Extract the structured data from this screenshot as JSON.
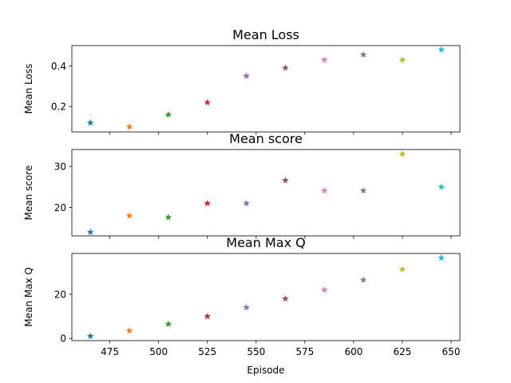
{
  "chart_data": [
    {
      "type": "scatter",
      "title": "Mean Loss",
      "xlabel": "",
      "ylabel": "Mean Loss",
      "xlim": [
        455.5,
        654.5
      ],
      "ylim": [
        0.075,
        0.5
      ],
      "yticks": [
        0.2,
        0.4
      ],
      "ytick_labels": [
        "0.2",
        "0.4"
      ],
      "show_xtick_labels": false,
      "grid": false,
      "marker": "star",
      "x": [
        465,
        485,
        505,
        525,
        545,
        565,
        585,
        605,
        625,
        645
      ],
      "y": [
        0.12,
        0.1,
        0.16,
        0.22,
        0.35,
        0.39,
        0.43,
        0.455,
        0.43,
        0.48
      ]
    },
    {
      "type": "scatter",
      "title": "Mean score",
      "xlabel": "",
      "ylabel": "Mean score",
      "xlim": [
        455.5,
        654.5
      ],
      "ylim": [
        13.1,
        34.1
      ],
      "yticks": [
        20,
        30
      ],
      "ytick_labels": [
        "20",
        "30"
      ],
      "show_xtick_labels": false,
      "grid": false,
      "marker": "star",
      "x": [
        465,
        485,
        505,
        525,
        545,
        565,
        585,
        605,
        625,
        645
      ],
      "y": [
        14,
        18,
        17.6,
        21,
        21,
        26.6,
        24.1,
        24.1,
        33,
        25
      ]
    },
    {
      "type": "scatter",
      "title": "Mean Max Q",
      "xlabel": "Episode",
      "ylabel": "Mean Max Q",
      "xlim": [
        455.5,
        654.5
      ],
      "ylim": [
        -1,
        38.5
      ],
      "yticks": [
        0,
        20
      ],
      "ytick_labels": [
        "0",
        "20"
      ],
      "show_xtick_labels": true,
      "grid": false,
      "marker": "star",
      "x": [
        465,
        485,
        505,
        525,
        545,
        565,
        585,
        605,
        625,
        645
      ],
      "y": [
        1,
        3.5,
        6.5,
        10,
        14,
        18,
        22,
        26.5,
        31.3,
        36.5
      ]
    }
  ],
  "x_ticks": [
    475,
    500,
    525,
    550,
    575,
    600,
    625,
    650
  ],
  "x_tick_labels": [
    "475",
    "500",
    "525",
    "550",
    "575",
    "600",
    "625",
    "650"
  ],
  "point_colors": [
    "#1f77b4",
    "#ff7f0e",
    "#2ca02c",
    "#d62728",
    "#9467bd",
    "#8c564b",
    "#e377c2",
    "#7f7f7f",
    "#bcbd22",
    "#17becf"
  ]
}
